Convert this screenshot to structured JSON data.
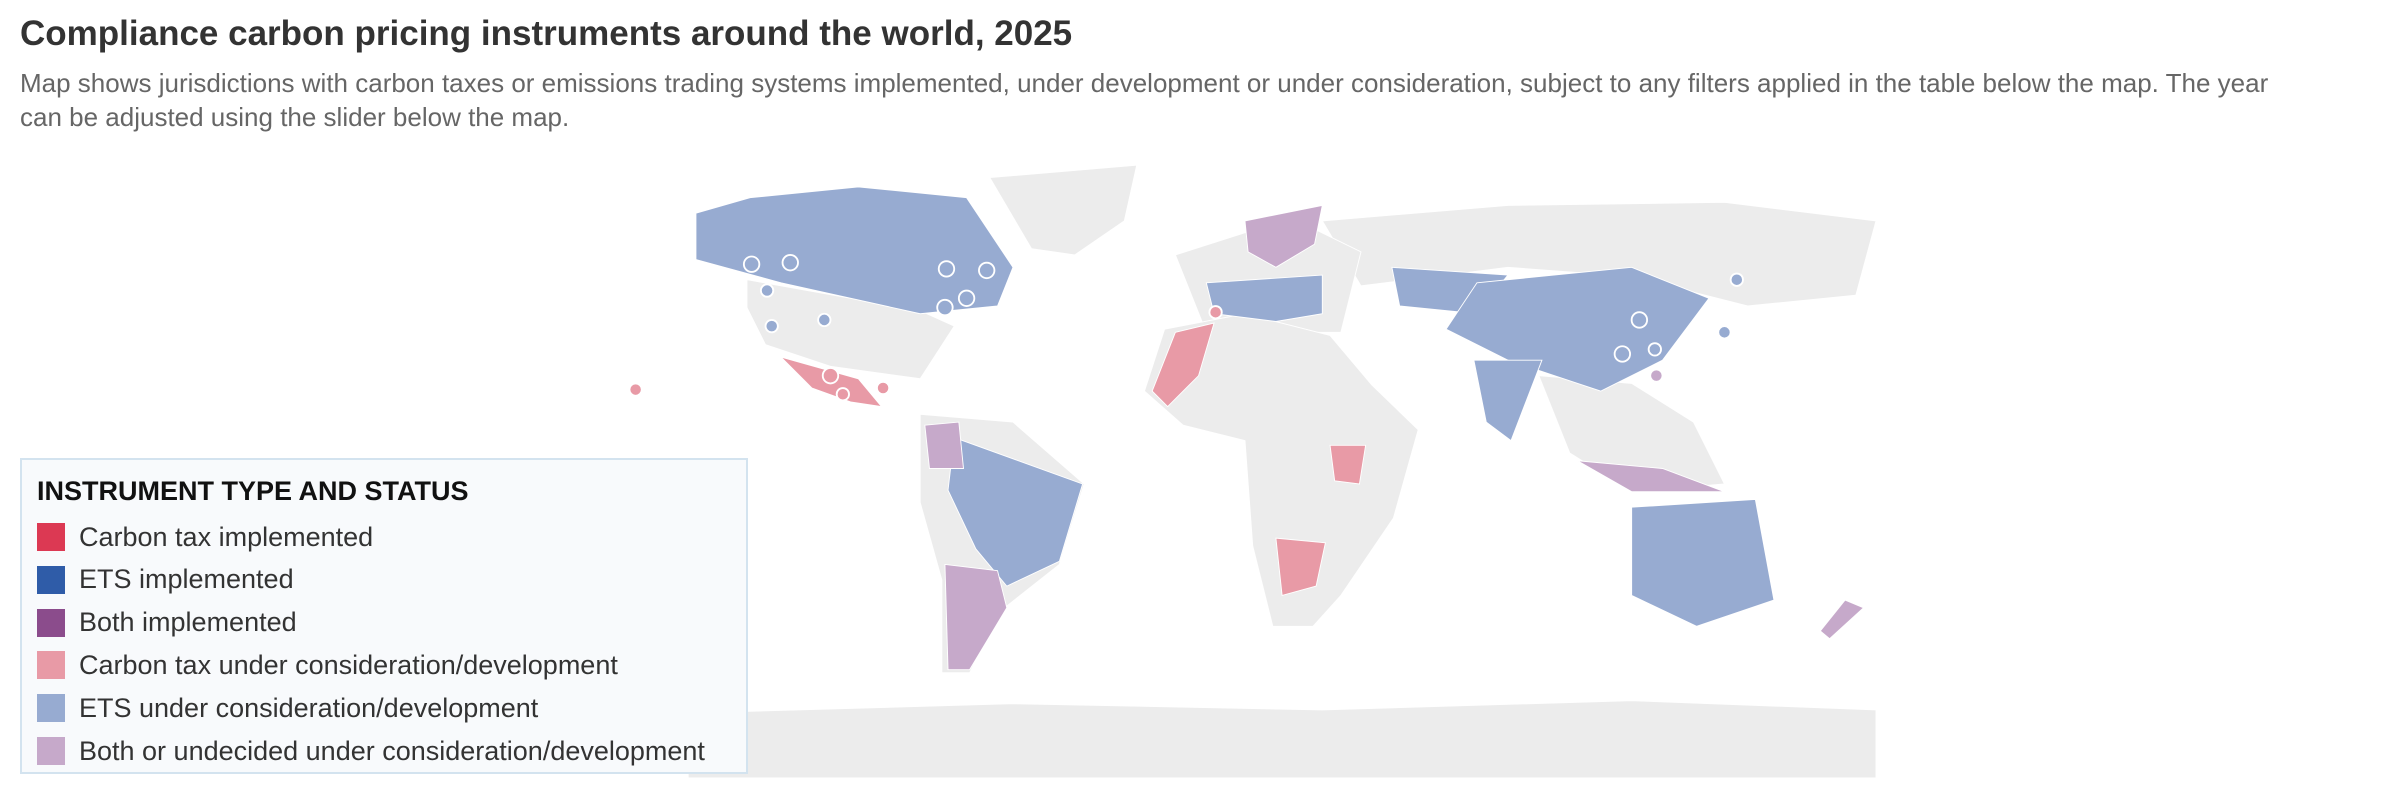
{
  "header": {
    "title": "Compliance carbon pricing instruments around the world, 2025",
    "subtitle": "Map shows jurisdictions with carbon taxes or emissions trading systems implemented, under development or under consideration, subject to any filters applied in the table below the map. The year can be adjusted using the slider below the map."
  },
  "legend": {
    "title": "INSTRUMENT TYPE AND STATUS",
    "items": [
      {
        "label": "Carbon tax implemented",
        "color": "#dc3953"
      },
      {
        "label": "ETS implemented",
        "color": "#2f5ca8"
      },
      {
        "label": "Both implemented",
        "color": "#8b4c8c"
      },
      {
        "label": "Carbon tax under consideration/development",
        "color": "#e89aa6"
      },
      {
        "label": "ETS under consideration/development",
        "color": "#97abd1"
      },
      {
        "label": "Both or undecided under consideration/development",
        "color": "#c6a9ca"
      }
    ]
  }
}
